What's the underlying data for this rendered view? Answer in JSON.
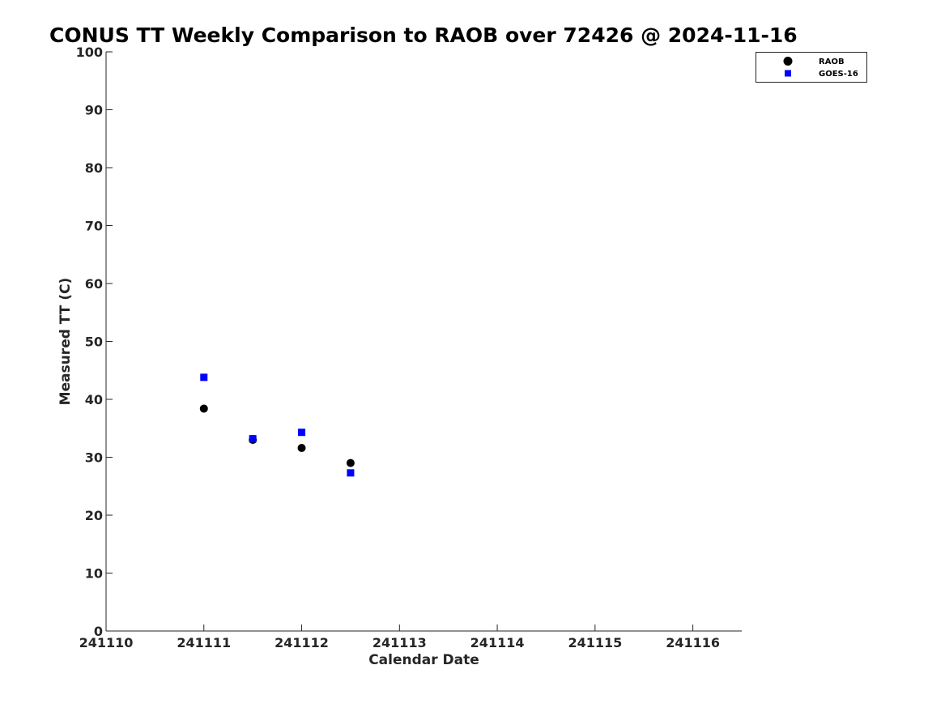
{
  "chart_data": {
    "type": "scatter",
    "title": "CONUS TT Weekly Comparison to RAOB over 72426 @ 2024-11-16",
    "xlabel": "Calendar Date",
    "ylabel": "Measured TT (C)",
    "xlim": [
      241110,
      241116.5
    ],
    "ylim": [
      0,
      100
    ],
    "x_ticks": [
      241110,
      241111,
      241112,
      241113,
      241114,
      241115,
      241116
    ],
    "x_tick_labels": [
      "241110",
      "241111",
      "241112",
      "241113",
      "241114",
      "241115",
      "241116"
    ],
    "y_ticks": [
      0,
      10,
      20,
      30,
      40,
      50,
      60,
      70,
      80,
      90,
      100
    ],
    "y_tick_labels": [
      "0",
      "10",
      "20",
      "30",
      "40",
      "50",
      "60",
      "70",
      "80",
      "90",
      "100"
    ],
    "grid": false,
    "legend_position": "top-right",
    "series": [
      {
        "name": "RAOB",
        "marker": "circle",
        "color": "#000000",
        "x": [
          241111,
          241111.5,
          241112,
          241112.5
        ],
        "y": [
          38.4,
          33.0,
          31.6,
          29.0
        ]
      },
      {
        "name": "GOES-16",
        "marker": "square",
        "color": "#0000ff",
        "x": [
          241111,
          241111.5,
          241112,
          241112.5
        ],
        "y": [
          43.8,
          33.2,
          34.3,
          27.3
        ]
      }
    ]
  }
}
